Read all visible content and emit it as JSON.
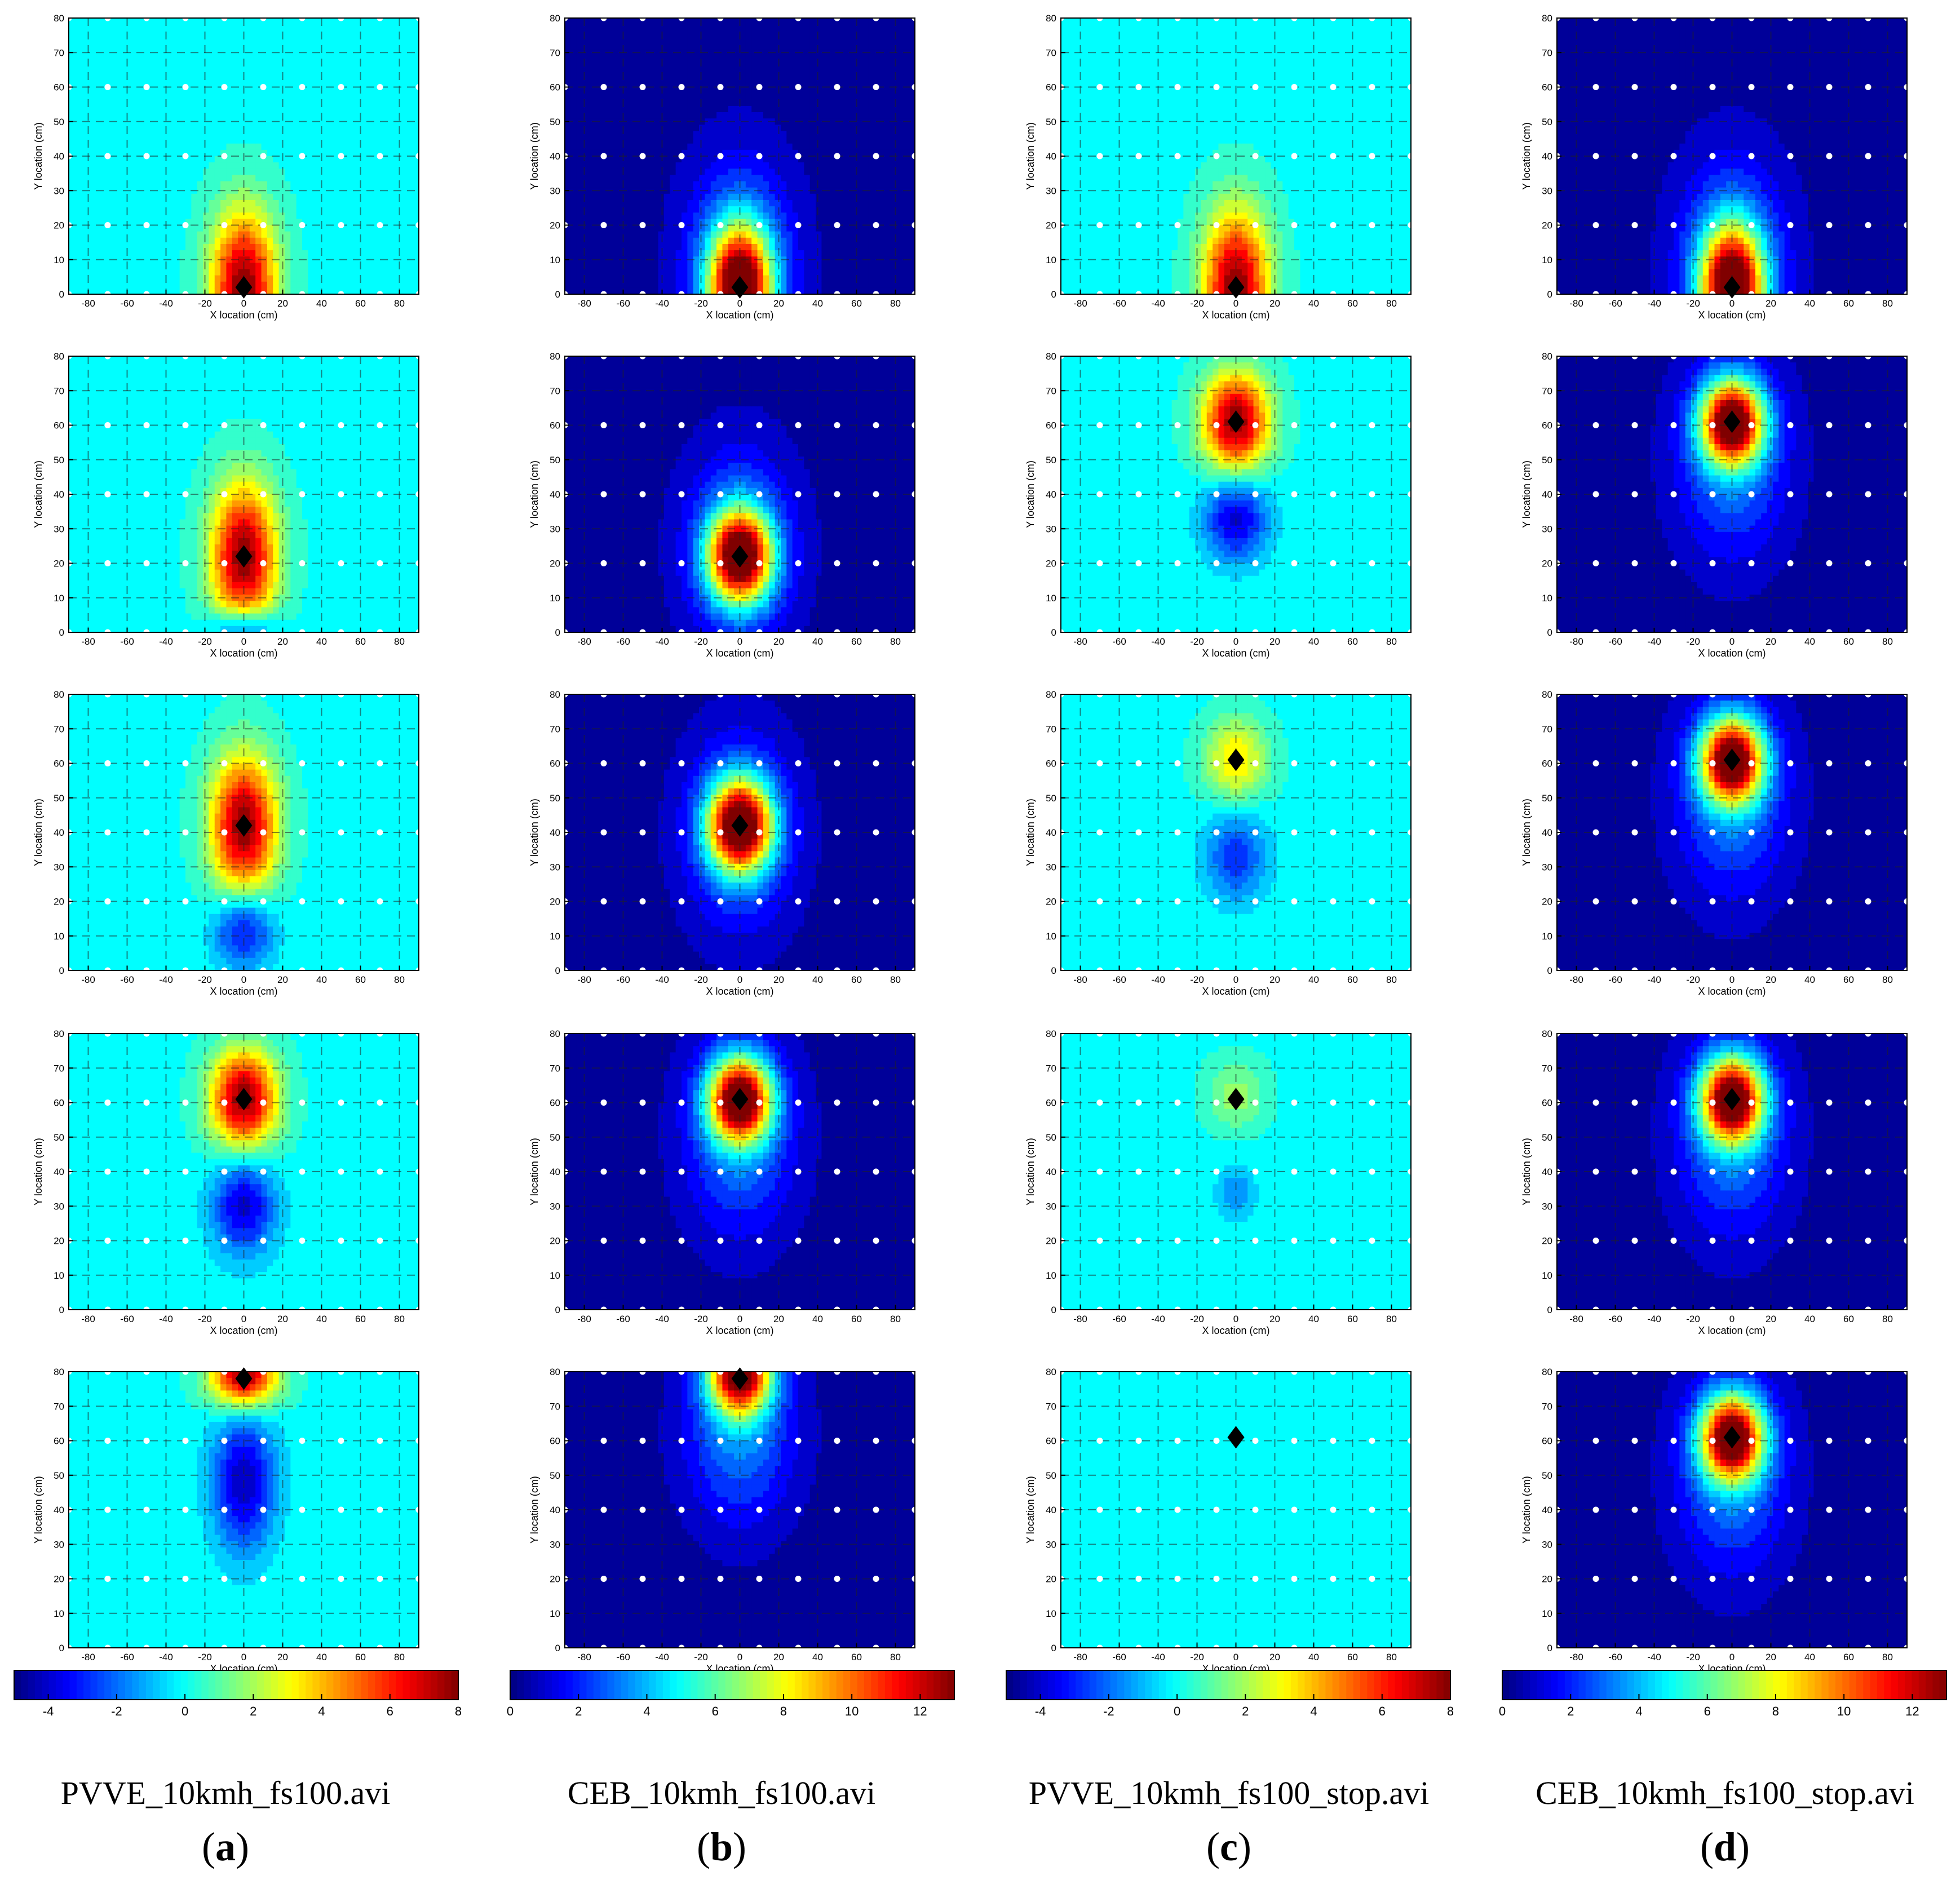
{
  "figure": {
    "columns": [
      {
        "key": "a",
        "file": "PVVE_10kmh_fs100.avi",
        "label": "a",
        "scale": "pvve",
        "frames": [
          "p_y2",
          "p_y22",
          "p_y42",
          "p_y61",
          "p_y78"
        ]
      },
      {
        "key": "b",
        "file": "CEB_10kmh_fs100.avi",
        "label": "b",
        "scale": "ceb",
        "frames": [
          "c_y2",
          "c_y22",
          "c_y42",
          "c_y61",
          "c_y78"
        ]
      },
      {
        "key": "c",
        "file": "PVVE_10kmh_fs100_stop.avi",
        "label": "c",
        "scale": "pvve",
        "frames": [
          "p_y2",
          "ps_60_a",
          "ps_60_b",
          "ps_60_c",
          "ps_60_d"
        ]
      },
      {
        "key": "d",
        "file": "CEB_10kmh_fs100_stop.avi",
        "label": "d",
        "scale": "ceb",
        "frames": [
          "c_y2",
          "c_y61",
          "c_y61",
          "c_y61",
          "c_y61"
        ]
      }
    ],
    "paren_open": "(",
    "paren_close": ")"
  },
  "chart_data": {
    "type": "heatmap",
    "xlabel": "X location (cm)",
    "ylabel": "Y location (cm)",
    "xlim": [
      -90,
      90
    ],
    "ylim": [
      0,
      80
    ],
    "xticks": [
      -80,
      -60,
      -40,
      -20,
      0,
      20,
      40,
      60,
      80
    ],
    "yticks": [
      0,
      10,
      20,
      30,
      40,
      50,
      60,
      70,
      80
    ],
    "sensor_x": [
      -90,
      -70,
      -50,
      -30,
      -10,
      10,
      30,
      50,
      70,
      90
    ],
    "sensor_y": [
      0,
      20,
      40,
      60,
      80
    ],
    "colorbars": {
      "pvve": {
        "min": -5,
        "max": 8,
        "ticks": [
          -4,
          -2,
          0,
          2,
          4,
          6,
          8
        ]
      },
      "ceb": {
        "min": 0,
        "max": 13,
        "ticks": [
          0,
          2,
          4,
          6,
          8,
          10,
          12
        ]
      }
    },
    "frames": {
      "p_y2": {
        "marker": [
          0,
          2
        ],
        "base": 0,
        "blobs": [
          {
            "x": 0,
            "y": 2,
            "amp": 8,
            "sx": 17,
            "sy": 22
          }
        ]
      },
      "p_y22": {
        "marker": [
          0,
          22
        ],
        "base": 0,
        "blobs": [
          {
            "x": 0,
            "y": 22,
            "amp": 8,
            "sx": 17,
            "sy": 21
          },
          {
            "x": 0,
            "y": 0,
            "amp": -4,
            "sx": 16,
            "sy": 7
          }
        ]
      },
      "p_y42": {
        "marker": [
          0,
          42
        ],
        "base": 0,
        "blobs": [
          {
            "x": 0,
            "y": 42,
            "amp": 8,
            "sx": 17,
            "sy": 20
          },
          {
            "x": 0,
            "y": 12,
            "amp": -3.8,
            "sx": 15,
            "sy": 11
          }
        ]
      },
      "p_y61": {
        "marker": [
          0,
          61
        ],
        "base": 0,
        "blobs": [
          {
            "x": 0,
            "y": 61,
            "amp": 8,
            "sx": 17,
            "sy": 14
          },
          {
            "x": 0,
            "y": 30,
            "amp": -4,
            "sx": 16,
            "sy": 14
          }
        ]
      },
      "p_y78": {
        "marker": [
          0,
          78
        ],
        "base": 0,
        "blobs": [
          {
            "x": 0,
            "y": 79,
            "amp": 8,
            "sx": 17,
            "sy": 9
          },
          {
            "x": 0,
            "y": 48,
            "amp": -4.2,
            "sx": 16,
            "sy": 20
          }
        ]
      },
      "ps_60_a": {
        "marker": [
          0,
          61
        ],
        "base": 0,
        "blobs": [
          {
            "x": 0,
            "y": 61,
            "amp": 8,
            "sx": 17,
            "sy": 14
          },
          {
            "x": 0,
            "y": 33,
            "amp": -4,
            "sx": 16,
            "sy": 12
          }
        ]
      },
      "ps_60_b": {
        "marker": [
          0,
          61
        ],
        "base": 0,
        "blobs": [
          {
            "x": 0,
            "y": 61,
            "amp": 3.5,
            "sx": 16,
            "sy": 12
          },
          {
            "x": 0,
            "y": 33,
            "amp": -2.8,
            "sx": 16,
            "sy": 13
          }
        ]
      },
      "ps_60_c": {
        "marker": [
          0,
          61
        ],
        "base": 0,
        "blobs": [
          {
            "x": 0,
            "y": 62,
            "amp": 1.8,
            "sx": 15,
            "sy": 10
          },
          {
            "x": 0,
            "y": 34,
            "amp": -1.6,
            "sx": 10,
            "sy": 8
          }
        ]
      },
      "ps_60_d": {
        "marker": [
          0,
          61
        ],
        "base": 0,
        "blobs": [
          {
            "x": 0,
            "y": 60,
            "amp": 0.2,
            "sx": 30,
            "sy": 22
          }
        ]
      },
      "c_y2": {
        "marker": [
          0,
          2
        ],
        "base": 0.3,
        "blobs": [
          {
            "x": 0,
            "y": 2,
            "amp": 12.5,
            "sx": 16,
            "sy": 17
          },
          {
            "x": 0,
            "y": 10,
            "amp": 3,
            "sx": 28,
            "sy": 30
          }
        ]
      },
      "c_y22": {
        "marker": [
          0,
          22
        ],
        "base": 0.3,
        "blobs": [
          {
            "x": 0,
            "y": 22,
            "amp": 12.5,
            "sx": 16,
            "sy": 13
          },
          {
            "x": 0,
            "y": 25,
            "amp": 3,
            "sx": 28,
            "sy": 28
          }
        ]
      },
      "c_y42": {
        "marker": [
          0,
          42
        ],
        "base": 0.3,
        "blobs": [
          {
            "x": 0,
            "y": 42,
            "amp": 12.5,
            "sx": 16,
            "sy": 13
          },
          {
            "x": 0,
            "y": 40,
            "amp": 3,
            "sx": 28,
            "sy": 28
          }
        ]
      },
      "c_y61": {
        "marker": [
          0,
          61
        ],
        "base": 0.3,
        "blobs": [
          {
            "x": 0,
            "y": 61,
            "amp": 12.5,
            "sx": 16,
            "sy": 12
          },
          {
            "x": 0,
            "y": 50,
            "amp": 3,
            "sx": 28,
            "sy": 28
          }
        ]
      },
      "c_y78": {
        "marker": [
          0,
          78
        ],
        "base": 0.3,
        "blobs": [
          {
            "x": 0,
            "y": 80,
            "amp": 12.5,
            "sx": 16,
            "sy": 12
          },
          {
            "x": 0,
            "y": 62,
            "amp": 3,
            "sx": 28,
            "sy": 26
          }
        ]
      }
    }
  }
}
